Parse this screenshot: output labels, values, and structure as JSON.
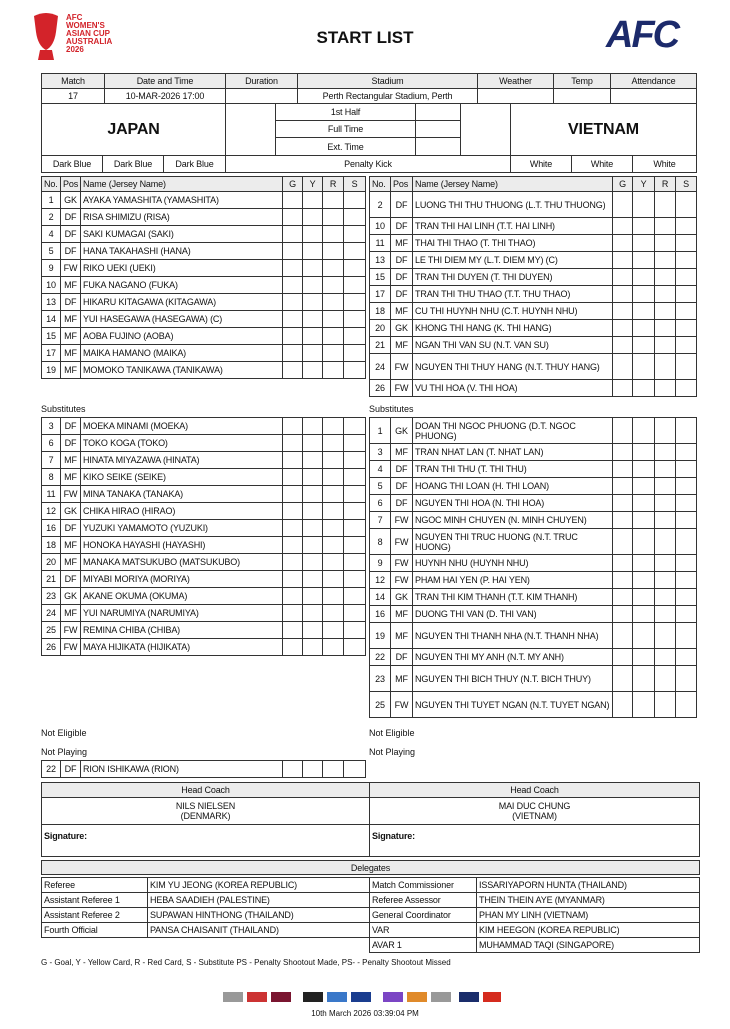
{
  "header": {
    "logo_lines": [
      "AFC",
      "WOMEN'S",
      "ASIAN CUP",
      "AUSTRALIA",
      "2026"
    ],
    "title": "START LIST",
    "brand": "AFC"
  },
  "match": {
    "columns": [
      "Match",
      "Date and Time",
      "Duration",
      "Stadium",
      "Weather",
      "Temp",
      "Attendance"
    ],
    "match": "17",
    "date_time": "10-MAR-2026 17:00",
    "stadium": "Perth Rectangular Stadium, Perth"
  },
  "teams": {
    "home": "JAPAN",
    "away": "VIETNAM",
    "periods": [
      "1st Half",
      "Full Time",
      "Ext. Time",
      "Penalty Kick"
    ],
    "home_kit": [
      "Dark Blue",
      "Dark Blue",
      "Dark Blue"
    ],
    "away_kit": [
      "White",
      "White",
      "White"
    ]
  },
  "lineup_columns": [
    "No.",
    "Pos",
    "Name (Jersey Name)",
    "G",
    "Y",
    "R",
    "S"
  ],
  "labels": {
    "substitutes": "Substitutes",
    "not_eligible": "Not Eligible",
    "not_playing": "Not Playing"
  },
  "home": {
    "starters": [
      [
        1,
        "GK",
        "AYAKA YAMASHITA (YAMASHITA)"
      ],
      [
        2,
        "DF",
        "RISA SHIMIZU (RISA)"
      ],
      [
        4,
        "DF",
        "SAKI KUMAGAI (SAKI)"
      ],
      [
        5,
        "DF",
        "HANA TAKAHASHI (HANA)"
      ],
      [
        9,
        "FW",
        "RIKO UEKI (UEKI)"
      ],
      [
        10,
        "MF",
        "FUKA NAGANO (FUKA)"
      ],
      [
        13,
        "DF",
        "HIKARU KITAGAWA (KITAGAWA)"
      ],
      [
        14,
        "MF",
        "YUI HASEGAWA (HASEGAWA) (C)"
      ],
      [
        15,
        "MF",
        "AOBA FUJINO (AOBA)"
      ],
      [
        17,
        "MF",
        "MAIKA HAMANO (MAIKA)"
      ],
      [
        19,
        "MF",
        "MOMOKO TANIKAWA (TANIKAWA)"
      ]
    ],
    "substitutes": [
      [
        3,
        "DF",
        "MOEKA MINAMI (MOEKA)"
      ],
      [
        6,
        "DF",
        "TOKO KOGA (TOKO)"
      ],
      [
        7,
        "MF",
        "HINATA MIYAZAWA (HINATA)"
      ],
      [
        8,
        "MF",
        "KIKO SEIKE (SEIKE)"
      ],
      [
        11,
        "FW",
        "MINA TANAKA (TANAKA)"
      ],
      [
        12,
        "GK",
        "CHIKA HIRAO (HIRAO)"
      ],
      [
        16,
        "DF",
        "YUZUKI YAMAMOTO (YUZUKI)"
      ],
      [
        18,
        "MF",
        "HONOKA HAYASHI (HAYASHI)"
      ],
      [
        20,
        "MF",
        "MANAKA MATSUKUBO (MATSUKUBO)"
      ],
      [
        21,
        "DF",
        "MIYABI MORIYA (MORIYA)"
      ],
      [
        23,
        "GK",
        "AKANE OKUMA (OKUMA)"
      ],
      [
        24,
        "MF",
        "YUI NARUMIYA (NARUMIYA)"
      ],
      [
        25,
        "FW",
        "REMINA CHIBA (CHIBA)"
      ],
      [
        26,
        "FW",
        "MAYA HIJIKATA (HIJIKATA)"
      ]
    ],
    "not_playing": [
      [
        22,
        "DF",
        "RION ISHIKAWA (RION)"
      ]
    ]
  },
  "away": {
    "starters": [
      [
        2,
        "DF",
        "LUONG THI THU THUONG (L.T. THU THUONG)"
      ],
      [
        10,
        "DF",
        "TRAN THI HAI LINH (T.T. HAI LINH)"
      ],
      [
        11,
        "MF",
        "THAI THI THAO (T. THI THAO)"
      ],
      [
        13,
        "DF",
        "LE THI DIEM MY (L.T. DIEM MY) (C)"
      ],
      [
        15,
        "DF",
        "TRAN THI DUYEN (T. THI DUYEN)"
      ],
      [
        17,
        "DF",
        "TRAN THI THU THAO (T.T. THU THAO)"
      ],
      [
        18,
        "MF",
        "CU THI HUYNH NHU (C.T. HUYNH NHU)"
      ],
      [
        20,
        "GK",
        "KHONG THI HANG (K. THI HANG)"
      ],
      [
        21,
        "MF",
        "NGAN THI VAN SU (N.T. VAN SU)"
      ],
      [
        24,
        "FW",
        "NGUYEN THI THUY HANG (N.T. THUY HANG)"
      ],
      [
        26,
        "FW",
        "VU THI HOA (V. THI HOA)"
      ]
    ],
    "substitutes": [
      [
        1,
        "GK",
        "DOAN THI NGOC PHUONG (D.T. NGOC PHUONG)"
      ],
      [
        3,
        "MF",
        "TRAN NHAT LAN (T. NHAT LAN)"
      ],
      [
        4,
        "DF",
        "TRAN THI THU (T. THI THU)"
      ],
      [
        5,
        "DF",
        "HOANG THI LOAN (H. THI LOAN)"
      ],
      [
        6,
        "DF",
        "NGUYEN THI HOA (N. THI HOA)"
      ],
      [
        7,
        "FW",
        "NGOC MINH CHUYEN (N. MINH CHUYEN)"
      ],
      [
        8,
        "FW",
        "NGUYEN THI TRUC HUONG (N.T. TRUC HUONG)"
      ],
      [
        9,
        "FW",
        "HUYNH NHU (HUYNH NHU)"
      ],
      [
        12,
        "FW",
        "PHAM HAI YEN (P. HAI YEN)"
      ],
      [
        14,
        "GK",
        "TRAN THI KIM THANH (T.T. KIM THANH)"
      ],
      [
        16,
        "MF",
        "DUONG THI VAN (D. THI VAN)"
      ],
      [
        19,
        "MF",
        "NGUYEN THI THANH NHA (N.T. THANH NHA)"
      ],
      [
        22,
        "DF",
        "NGUYEN THI MY ANH (N.T. MY ANH)"
      ],
      [
        23,
        "MF",
        "NGUYEN THI BICH THUY (N.T. BICH THUY)"
      ],
      [
        25,
        "FW",
        "NGUYEN THI TUYET NGAN (N.T. TUYET NGAN)"
      ]
    ]
  },
  "coaches": {
    "label": "Head Coach",
    "home_name": "NILS NIELSEN",
    "home_country": "(DENMARK)",
    "away_name": "MAI DUC CHUNG",
    "away_country": "(VIETNAM)",
    "signature": "Signature:"
  },
  "delegates": {
    "title": "Delegates",
    "left": [
      [
        "Referee",
        "KIM YU JEONG (KOREA REPUBLIC)"
      ],
      [
        "Assistant Referee 1",
        "HEBA SAADIEH (PALESTINE)"
      ],
      [
        "Assistant Referee 2",
        "SUPAWAN HINTHONG (THAILAND)"
      ],
      [
        "Fourth Official",
        "PANSA CHAISANIT (THAILAND)"
      ]
    ],
    "right": [
      [
        "Match Commissioner",
        "ISSARIYAPORN HUNTA (THAILAND)"
      ],
      [
        "Referee Assessor",
        "THEIN THEIN AYE (MYANMAR)"
      ],
      [
        "General Coordinator",
        "PHAN MY LINH (VIETNAM)"
      ],
      [
        "VAR",
        "KIM HEEGON (KOREA REPUBLIC)"
      ],
      [
        "AVAR 1",
        "MUHAMMAD TAQI (SINGAPORE)"
      ]
    ]
  },
  "footer": {
    "legend": "G - Goal, Y - Yellow Card, R - Red Card, S - Substitute PS - Penalty Shootout Made, PS- - Penalty Shootout Missed",
    "timestamp": "10th March 2026 03:39:04 PM"
  }
}
